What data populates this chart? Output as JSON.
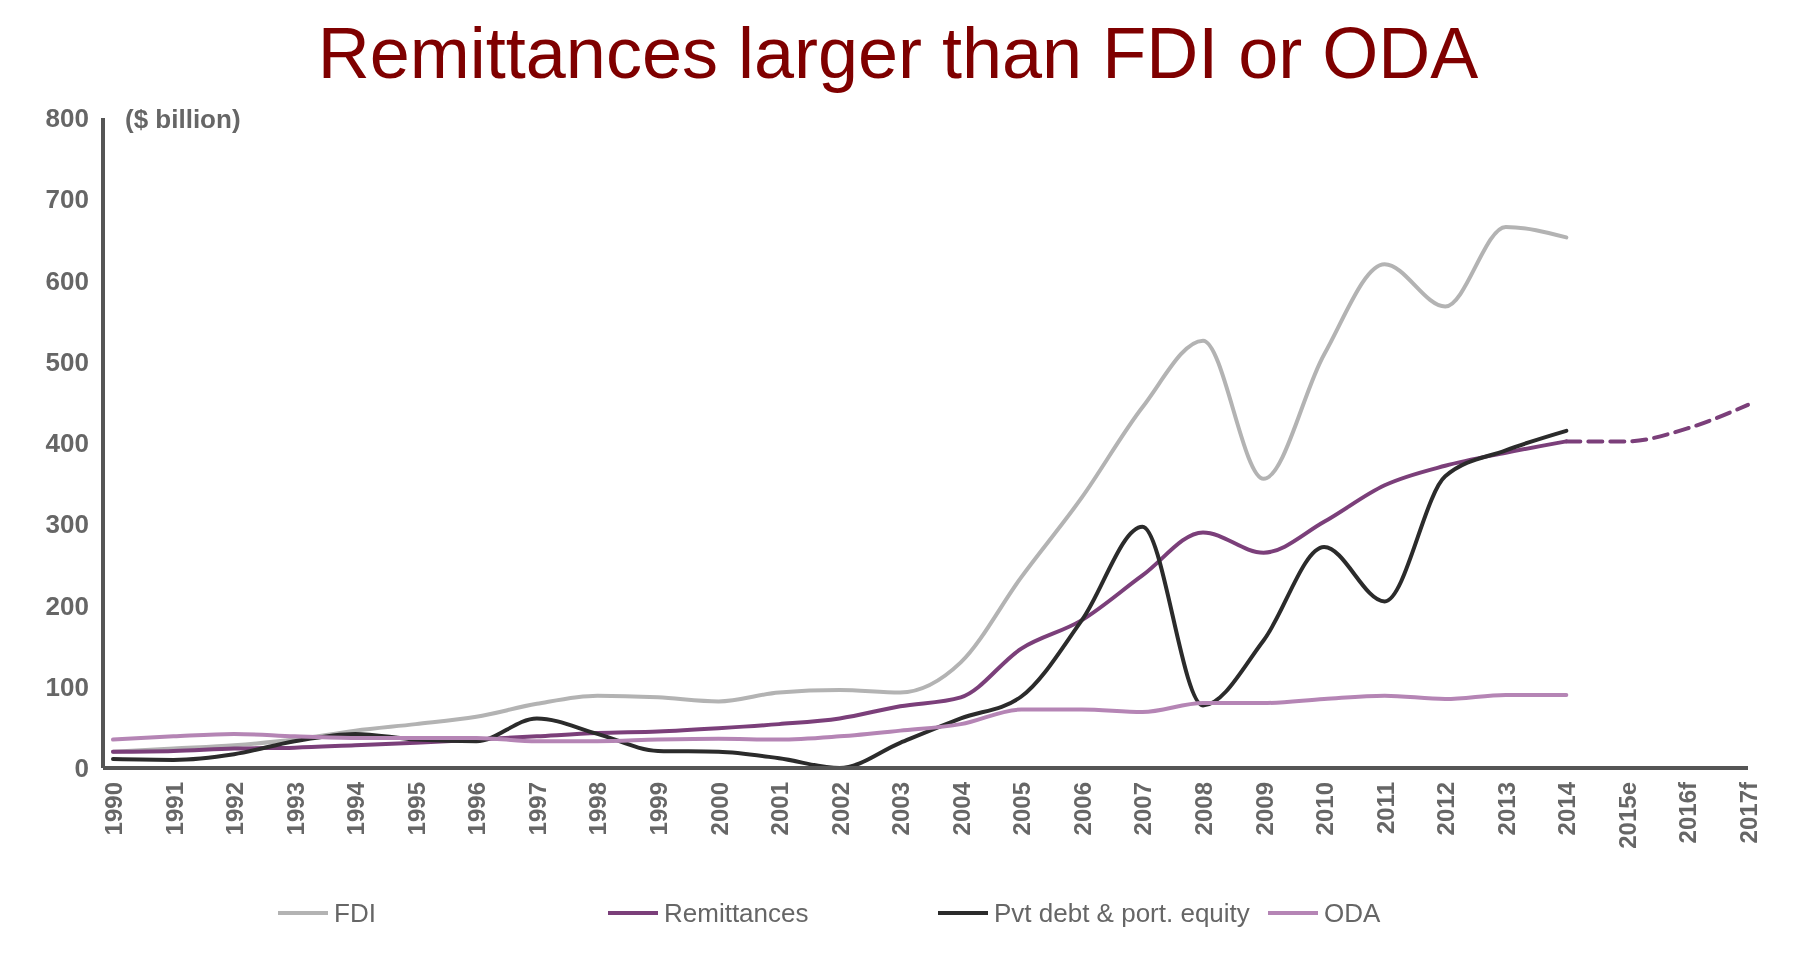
{
  "chart_data": {
    "type": "line",
    "title": "Remittances larger than FDI or ODA",
    "ylabel": "($ billion)",
    "categories": [
      "1990",
      "1991",
      "1992",
      "1993",
      "1994",
      "1995",
      "1996",
      "1997",
      "1998",
      "1999",
      "2000",
      "2001",
      "2002",
      "2003",
      "2004",
      "2005",
      "2006",
      "2007",
      "2008",
      "2009",
      "2010",
      "2011",
      "2012",
      "2013",
      "2014",
      "2015e",
      "2016f",
      "2017f"
    ],
    "ylim": [
      0,
      800
    ],
    "yticks": [
      0,
      100,
      200,
      300,
      400,
      500,
      600,
      700,
      800
    ],
    "grid": false,
    "legend": "bottom",
    "marker": "none",
    "series": [
      {
        "name": "FDI",
        "color": "#b3b3b3",
        "values": [
          20,
          24,
          28,
          35,
          46,
          54,
          63,
          79,
          89,
          87,
          82,
          93,
          96,
          93,
          130,
          235,
          333,
          444,
          526,
          356,
          509,
          620,
          568,
          666,
          653,
          null,
          null,
          null
        ]
      },
      {
        "name": "Remittances",
        "color": "#7b3f7a",
        "values": [
          20,
          21,
          24,
          25,
          28,
          31,
          35,
          39,
          43,
          45,
          49,
          54,
          61,
          76,
          87,
          147,
          182,
          237,
          290,
          265,
          303,
          348,
          372,
          388,
          402,
          null,
          null,
          null
        ]
      },
      {
        "color": "#7b3f7a",
        "line_style": "dashed",
        "values": [
          null,
          null,
          null,
          null,
          null,
          null,
          null,
          null,
          null,
          null,
          null,
          null,
          null,
          null,
          null,
          null,
          null,
          null,
          null,
          null,
          null,
          null,
          null,
          null,
          402,
          402,
          418,
          447
        ]
      },
      {
        "name": "Pvt debt & port. equity",
        "color": "#2b2b2b",
        "values": [
          11,
          10,
          17,
          33,
          42,
          35,
          33,
          61,
          42,
          21,
          20,
          12,
          0,
          31,
          61,
          88,
          182,
          297,
          77,
          157,
          272,
          205,
          359,
          391,
          415,
          null,
          null,
          null
        ]
      },
      {
        "name": "ODA",
        "color": "#b585b5",
        "values": [
          35,
          39,
          42,
          39,
          37,
          37,
          37,
          33,
          33,
          35,
          36,
          35,
          39,
          46,
          54,
          72,
          72,
          69,
          80,
          80,
          85,
          89,
          85,
          90,
          90,
          null,
          null,
          null
        ]
      }
    ]
  }
}
